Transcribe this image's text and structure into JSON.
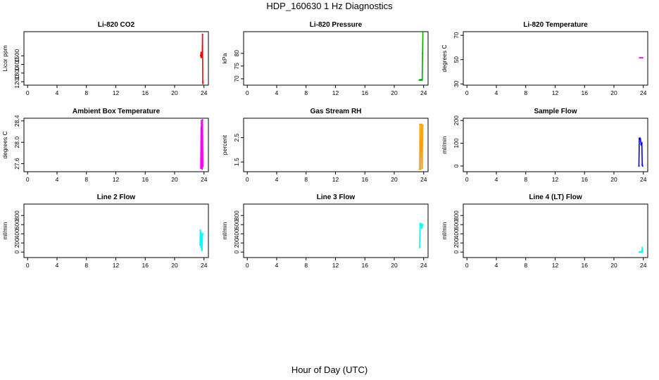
{
  "page": {
    "title": "HDP_160630  1 Hz Diagnostics",
    "xlabel": "Hour of Day (UTC)"
  },
  "chart_data": [
    {
      "type": "line",
      "title": "Li-820 CO2",
      "ylabel": "Licor ppm",
      "xticks": [
        0,
        4,
        8,
        12,
        16,
        20,
        24
      ],
      "yticks": [
        1200,
        1300,
        1400,
        1500
      ],
      "xlim": [
        -0.5,
        24.6
      ],
      "ylim": [
        1160,
        1780
      ],
      "color": "#ff0000",
      "series": [
        {
          "x": [
            23.55,
            23.6,
            23.62,
            23.65,
            23.7,
            23.72,
            23.75,
            23.8,
            23.83,
            23.85
          ],
          "y": [
            1500,
            1540,
            1480,
            1520,
            1490,
            1530,
            1500,
            1750,
            1200,
            1180
          ]
        }
      ]
    },
    {
      "type": "line",
      "title": "Li-820 Pressure",
      "ylabel": "kPa",
      "xticks": [
        0,
        4,
        8,
        12,
        16,
        20,
        24
      ],
      "yticks": [
        70,
        75,
        80
      ],
      "xlim": [
        -0.5,
        24.6
      ],
      "ylim": [
        67.5,
        88.5
      ],
      "color": "#00aa00",
      "series": [
        {
          "x": [
            23.4,
            23.5,
            23.55,
            23.6,
            23.65,
            23.7,
            23.8,
            23.85,
            23.9
          ],
          "y": [
            69.5,
            69.6,
            69.5,
            69.6,
            69.5,
            69.6,
            69.5,
            80,
            88.5
          ]
        }
      ]
    },
    {
      "type": "line",
      "title": "Li-820 Temperature",
      "ylabel": "degrees C",
      "xticks": [
        0,
        4,
        8,
        12,
        16,
        20,
        24
      ],
      "yticks": [
        30,
        50,
        70
      ],
      "xlim": [
        -0.5,
        24.6
      ],
      "ylim": [
        29,
        73
      ],
      "color": "#ff00ff",
      "series": [
        {
          "x": [
            23.5,
            23.9
          ],
          "y": [
            51.5,
            51.5
          ]
        }
      ]
    },
    {
      "type": "line",
      "title": "Ambient Box Temperature",
      "ylabel": "degrees C",
      "xticks": [
        0,
        4,
        8,
        12,
        16,
        20,
        24
      ],
      "yticks": [
        27.6,
        28.0,
        28.4
      ],
      "xlim": [
        -0.5,
        24.6
      ],
      "ylim": [
        27.45,
        28.45
      ],
      "color": "#ff00ff",
      "band": true,
      "series": [
        {
          "x": [
            23.55,
            23.6,
            23.65,
            23.7,
            23.75,
            23.8,
            23.85
          ],
          "y": [
            27.52,
            28.27,
            27.52,
            28.3,
            27.5,
            28.42,
            27.55
          ]
        }
      ]
    },
    {
      "type": "scatter",
      "title": "Gas Stream RH",
      "ylabel": "percent",
      "xticks": [
        0,
        4,
        8,
        12,
        16,
        20,
        24
      ],
      "yticks": [
        1.5,
        2.5
      ],
      "xlim": [
        -0.5,
        24.6
      ],
      "ylim": [
        1.1,
        3.3
      ],
      "color": "#ff9900",
      "band": true,
      "series": [
        {
          "x": [
            23.4,
            23.5,
            23.6,
            23.7,
            23.8,
            23.9
          ],
          "y": [
            1.2,
            3.05,
            1.2,
            3.05,
            1.25,
            3.0
          ]
        }
      ]
    },
    {
      "type": "line",
      "title": "Sample Flow",
      "ylabel": "ml/min",
      "xticks": [
        0,
        4,
        8,
        12,
        16,
        20,
        24
      ],
      "yticks": [
        0,
        100,
        200
      ],
      "xlim": [
        -0.5,
        24.6
      ],
      "ylim": [
        -25,
        210
      ],
      "color": "#0000ff",
      "series": [
        {
          "x": [
            23.4,
            23.45,
            23.5,
            23.55,
            23.6,
            23.7,
            23.8,
            23.85,
            23.9
          ],
          "y": [
            0,
            120,
            118,
            122,
            119,
            95,
            100,
            5,
            0
          ]
        }
      ]
    },
    {
      "type": "line",
      "title": "Line 2 Flow",
      "ylabel": "ml/min",
      "xticks": [
        0,
        4,
        8,
        12,
        16,
        20,
        24
      ],
      "yticks": [
        0,
        200,
        400,
        600,
        800
      ],
      "xlim": [
        -0.5,
        24.6
      ],
      "ylim": [
        -120,
        1050
      ],
      "color": "#00ffff",
      "series": [
        {
          "x": [
            23.45,
            23.5,
            23.55,
            23.6,
            23.65,
            23.7,
            23.75,
            23.8,
            23.85
          ],
          "y": [
            150,
            480,
            450,
            100,
            420,
            40,
            50,
            380,
            400
          ]
        }
      ]
    },
    {
      "type": "line",
      "title": "Line 3 Flow",
      "ylabel": "ml/min",
      "xticks": [
        0,
        4,
        8,
        12,
        16,
        20,
        24
      ],
      "yticks": [
        0,
        200,
        400,
        600,
        800
      ],
      "xlim": [
        -0.5,
        24.6
      ],
      "ylim": [
        -120,
        1050
      ],
      "color": "#00ffff",
      "series": [
        {
          "x": [
            23.45,
            23.5,
            23.55,
            23.6,
            23.65,
            23.7,
            23.75,
            23.8,
            23.85
          ],
          "y": [
            100,
            600,
            620,
            580,
            600,
            610,
            520,
            560,
            600
          ]
        }
      ]
    },
    {
      "type": "line",
      "title": "Line 4 (LT) Flow",
      "ylabel": "ml/min",
      "xticks": [
        0,
        4,
        8,
        12,
        16,
        20,
        24
      ],
      "yticks": [
        0,
        200,
        400,
        600,
        800
      ],
      "xlim": [
        -0.5,
        24.6
      ],
      "ylim": [
        -120,
        1050
      ],
      "color": "#00ffff",
      "series": [
        {
          "x": [
            23.45,
            23.5,
            23.6,
            23.7,
            23.8,
            23.85,
            23.9
          ],
          "y": [
            0,
            5,
            0,
            5,
            0,
            100,
            0
          ]
        }
      ]
    }
  ]
}
